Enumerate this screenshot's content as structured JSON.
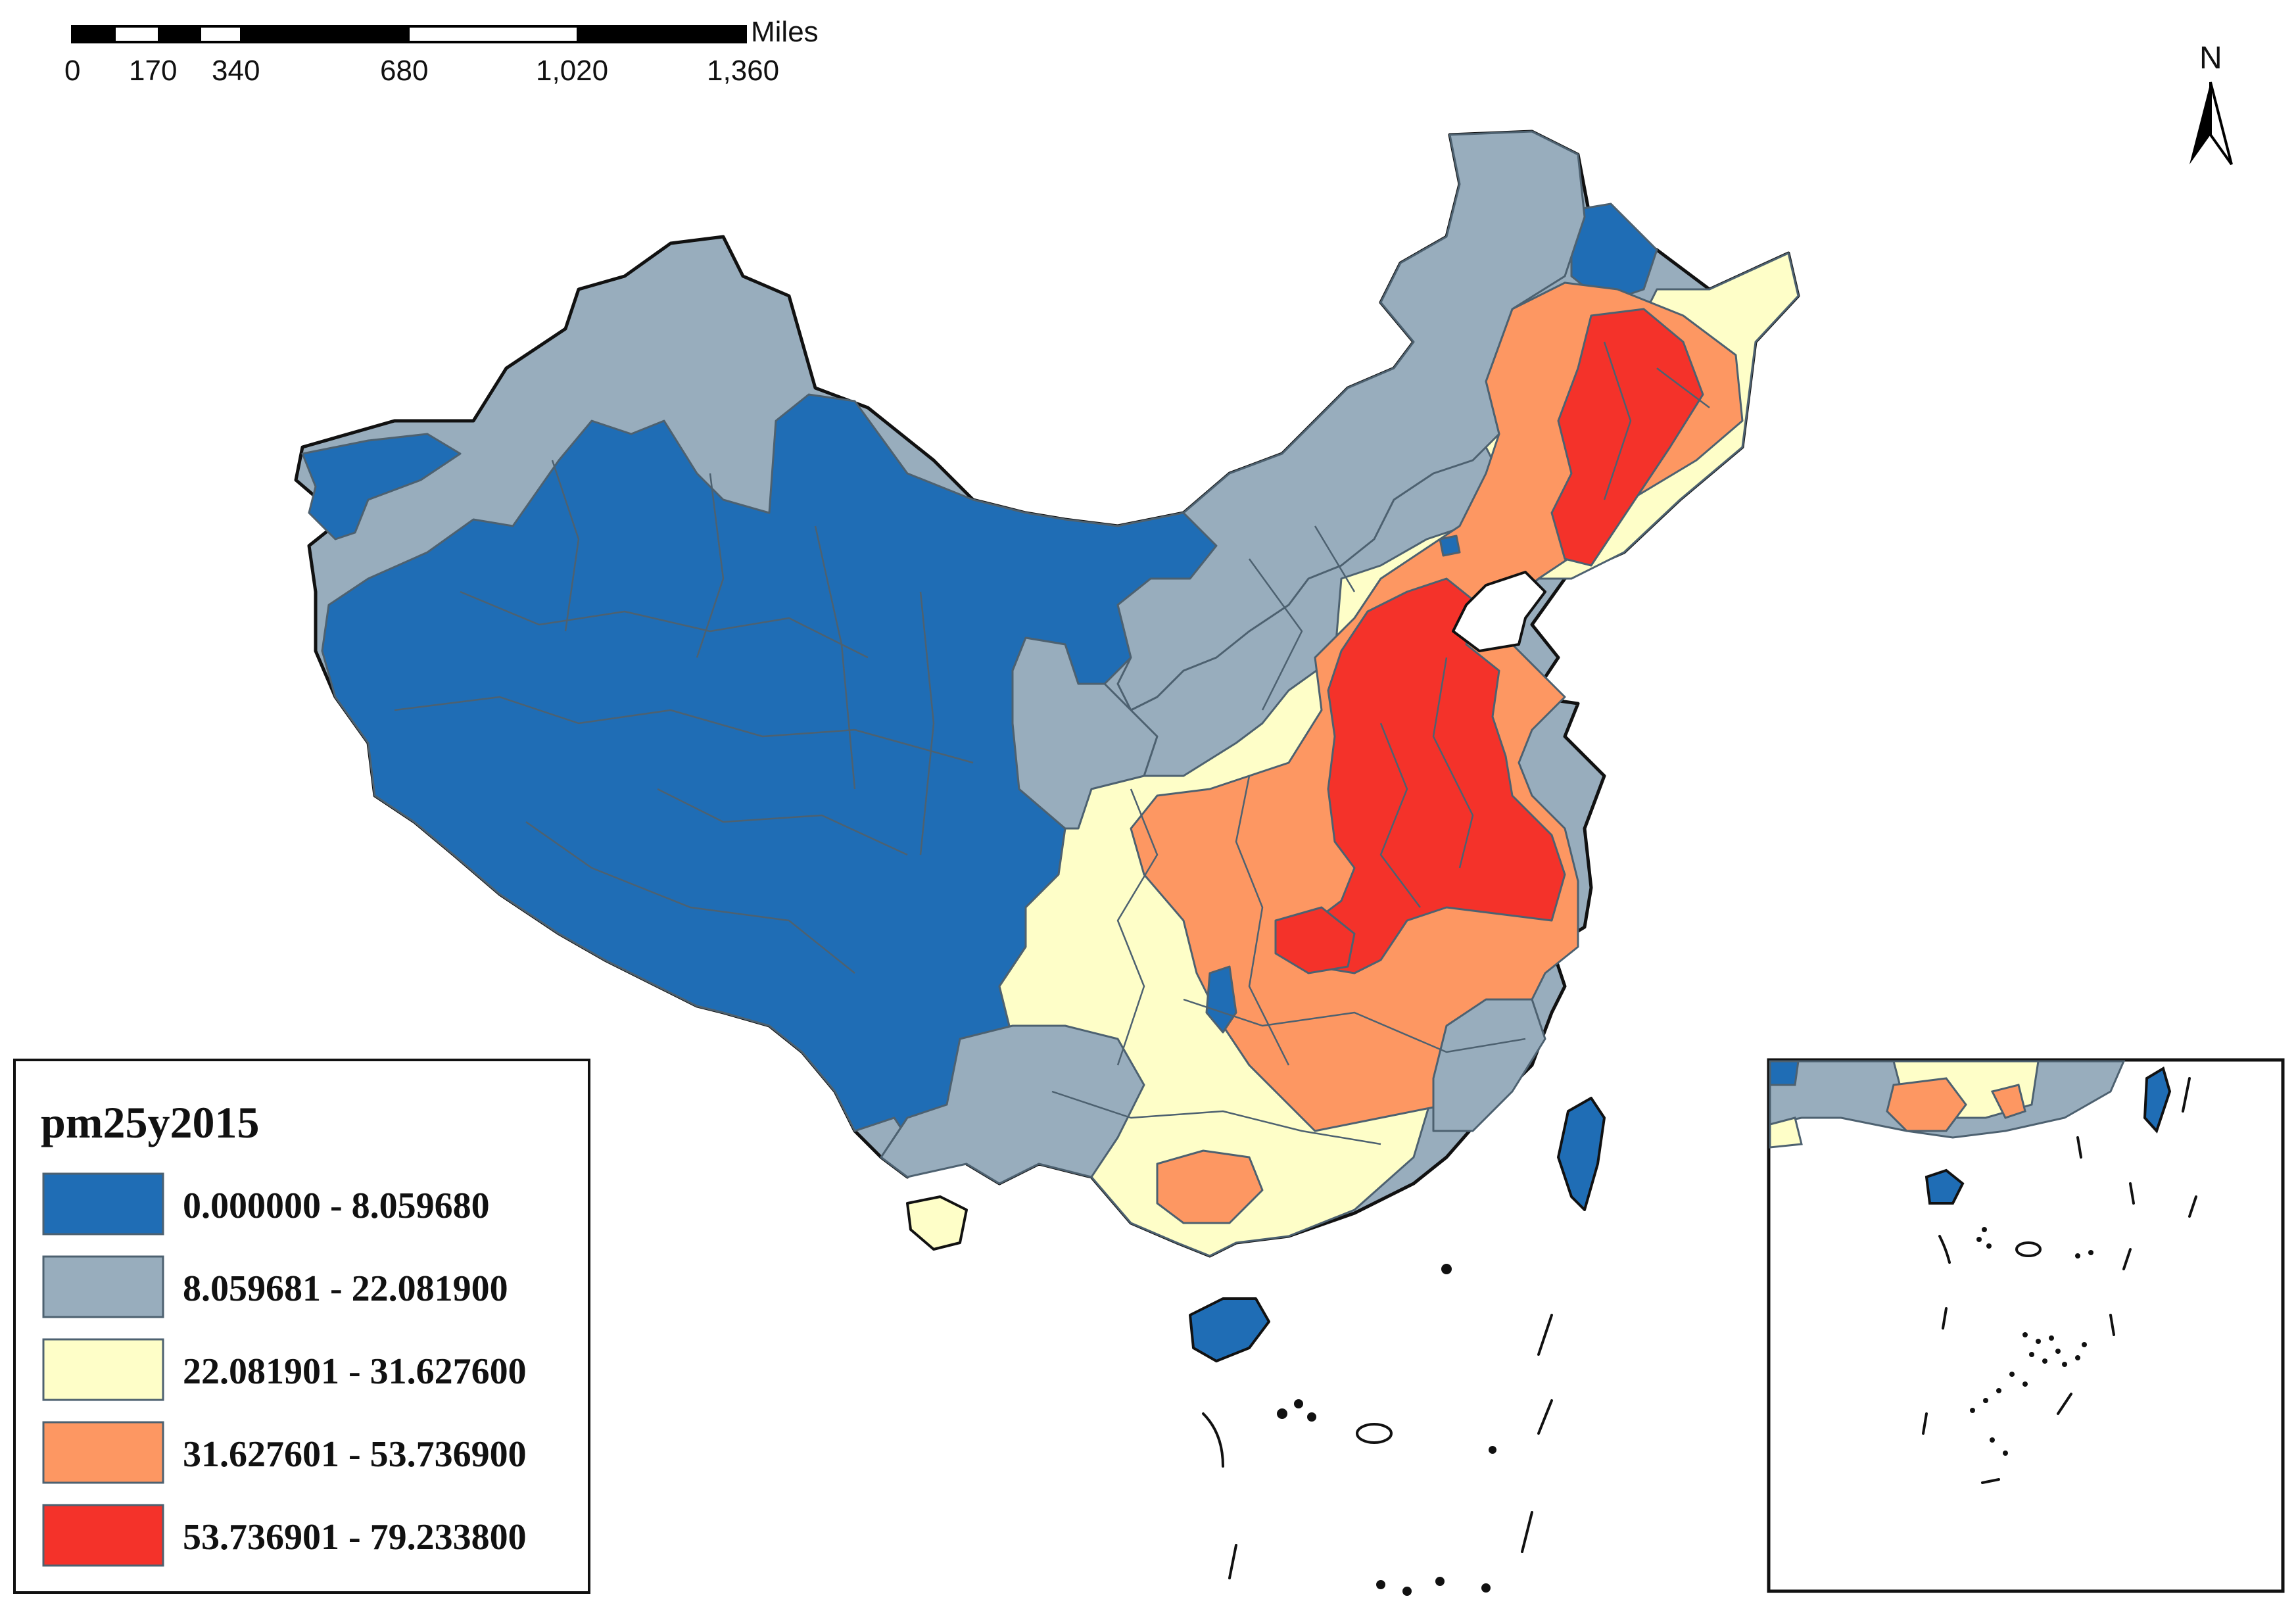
{
  "scale_bar": {
    "unit": "Miles",
    "ticks": [
      "0",
      "170",
      "340",
      "680",
      "1,020",
      "1,360"
    ]
  },
  "north_arrow": {
    "label": "N"
  },
  "legend": {
    "title": "pm25y2015",
    "classes": [
      {
        "label": "0.000000 - 8.059680",
        "color": "#1f6db5"
      },
      {
        "label": "8.059681 - 22.081900",
        "color": "#98adbd"
      },
      {
        "label": "22.081901 - 31.627600",
        "color": "#fefec8"
      },
      {
        "label": "31.627601 - 53.736900",
        "color": "#fd9762"
      },
      {
        "label": "53.736901 - 79.233800",
        "color": "#f4322a"
      }
    ]
  },
  "colors": {
    "boundary": "#111111",
    "internal_border": "#4d6170"
  }
}
